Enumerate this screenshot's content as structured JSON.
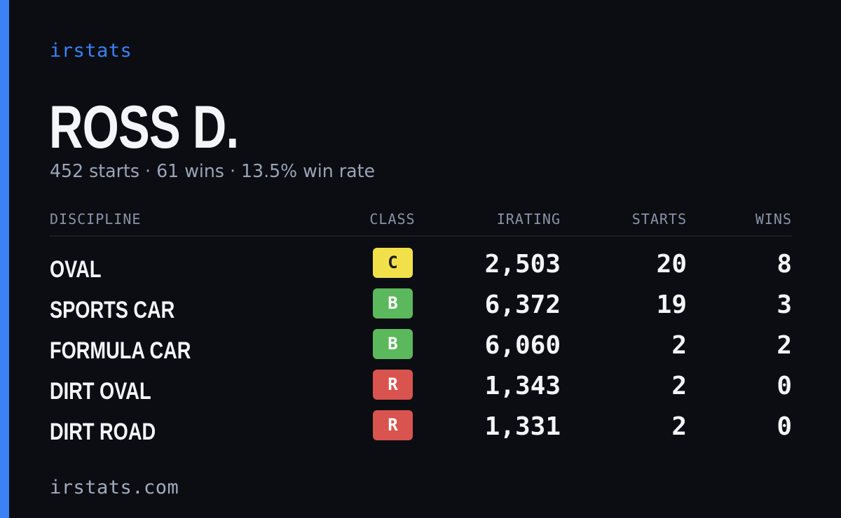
{
  "colors": {
    "accent": "#3b82f6",
    "background": "#0b0d13",
    "class_C": "#f2e04a",
    "class_B": "#5cb85c",
    "class_R": "#d9534f"
  },
  "brand": "irstats",
  "driver": {
    "name": "ROSS D.",
    "summary": "452 starts · 61 wins · 13.5% win rate"
  },
  "table": {
    "headers": {
      "discipline": "DISCIPLINE",
      "class": "CLASS",
      "irating": "IRATING",
      "starts": "STARTS",
      "wins": "WINS"
    },
    "rows": [
      {
        "discipline": "OVAL",
        "class": "C",
        "class_color": "#f2e04a",
        "class_text_color": "#1a1a1a",
        "irating": "2,503",
        "starts": "20",
        "wins": "8"
      },
      {
        "discipline": "SPORTS CAR",
        "class": "B",
        "class_color": "#5cb85c",
        "class_text_color": "#ffffff",
        "irating": "6,372",
        "starts": "19",
        "wins": "3"
      },
      {
        "discipline": "FORMULA CAR",
        "class": "B",
        "class_color": "#5cb85c",
        "class_text_color": "#ffffff",
        "irating": "6,060",
        "starts": "2",
        "wins": "2"
      },
      {
        "discipline": "DIRT OVAL",
        "class": "R",
        "class_color": "#d9534f",
        "class_text_color": "#ffffff",
        "irating": "1,343",
        "starts": "2",
        "wins": "0"
      },
      {
        "discipline": "DIRT ROAD",
        "class": "R",
        "class_color": "#d9534f",
        "class_text_color": "#ffffff",
        "irating": "1,331",
        "starts": "2",
        "wins": "0"
      }
    ]
  },
  "footer": {
    "site": "irstats.com"
  }
}
